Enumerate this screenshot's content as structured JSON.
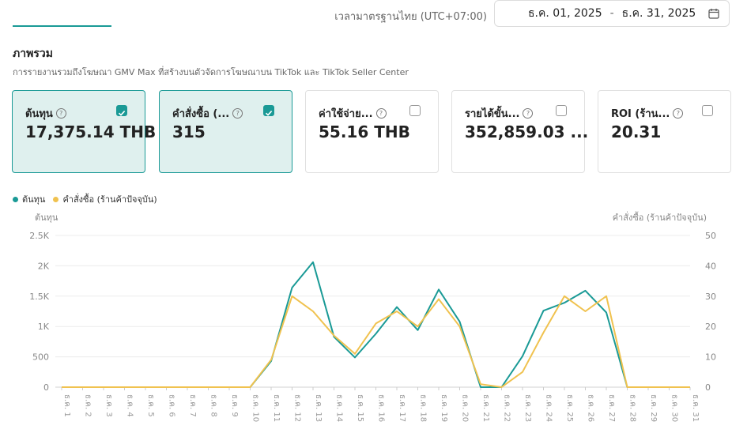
{
  "header": {
    "timezone": "เวลามาตรฐานไทย (UTC+07:00)",
    "date_start": "ธ.ค. 01, 2025",
    "date_sep": "-",
    "date_end": "ธ.ค. 31, 2025",
    "calendar_icon": "calendar-icon"
  },
  "section": {
    "title": "ภาพรวม",
    "description": "การรายงานรวมถึงโฆษณา GMV Max ที่สร้างบนตัวจัดการโฆษณาบน TikTok และ TikTok Seller Center"
  },
  "cards": [
    {
      "label": "ต้นทุน",
      "value": "17,375.14 THB",
      "checked": true
    },
    {
      "label": "คำสั่งซื้อ (...",
      "value": "315",
      "checked": true
    },
    {
      "label": "ค่าใช้จ่าย...",
      "value": "55.16 THB",
      "checked": false
    },
    {
      "label": "รายได้ขั้น...",
      "value": "352,859.03 ...",
      "checked": false
    },
    {
      "label": "ROI (ร้าน...",
      "value": "20.31",
      "checked": false
    }
  ],
  "colors": {
    "accent": "#1a9a96",
    "cost": "#1a9a96",
    "orders": "#f0c24f"
  },
  "chart_data": {
    "type": "line",
    "legend": [
      "ต้นทุน",
      "คำสั่งซื้อ (ร้านค้าปัจจุบัน)"
    ],
    "ylabel": "ต้นทุน",
    "y2label": "คำสั่งซื้อ (ร้านค้าปัจจุบัน)",
    "ylim": [
      0,
      2500
    ],
    "y2lim": [
      0,
      50
    ],
    "yticks": [
      "0",
      "500",
      "1K",
      "1.5K",
      "2K",
      "2.5K"
    ],
    "y2ticks": [
      "0",
      "10",
      "20",
      "30",
      "40",
      "50"
    ],
    "categories": [
      "ธ.ค. 1",
      "ธ.ค. 2",
      "ธ.ค. 3",
      "ธ.ค. 4",
      "ธ.ค. 5",
      "ธ.ค. 6",
      "ธ.ค. 7",
      "ธ.ค. 8",
      "ธ.ค. 9",
      "ธ.ค. 10",
      "ธ.ค. 11",
      "ธ.ค. 12",
      "ธ.ค. 13",
      "ธ.ค. 14",
      "ธ.ค. 15",
      "ธ.ค. 16",
      "ธ.ค. 17",
      "ธ.ค. 18",
      "ธ.ค. 19",
      "ธ.ค. 20",
      "ธ.ค. 21",
      "ธ.ค. 22",
      "ธ.ค. 23",
      "ธ.ค. 24",
      "ธ.ค. 25",
      "ธ.ค. 26",
      "ธ.ค. 27",
      "ธ.ค. 28",
      "ธ.ค. 29",
      "ธ.ค. 30",
      "ธ.ค. 31"
    ],
    "series": [
      {
        "name": "ต้นทุน",
        "axis": "left",
        "values": [
          0,
          0,
          0,
          0,
          0,
          0,
          0,
          0,
          0,
          0,
          430,
          1640,
          2060,
          830,
          490,
          880,
          1320,
          940,
          1610,
          1080,
          0,
          0,
          510,
          1260,
          1390,
          1590,
          1230,
          0,
          0,
          0,
          0
        ]
      },
      {
        "name": "คำสั่งซื้อ (ร้านค้าปัจจุบัน)",
        "axis": "right",
        "values": [
          0,
          0,
          0,
          0,
          0,
          0,
          0,
          0,
          0,
          0,
          9,
          30,
          25,
          17,
          11,
          21,
          25,
          20,
          29,
          20,
          1,
          0,
          5,
          18,
          30,
          25,
          30,
          0,
          0,
          0,
          0
        ]
      }
    ],
    "grid": true
  }
}
